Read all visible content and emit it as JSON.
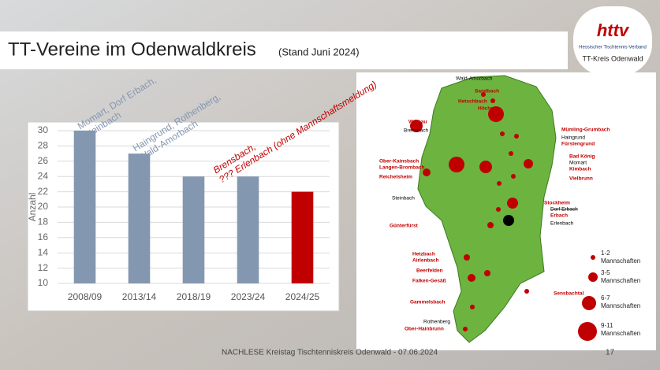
{
  "slide": {
    "title": "TT-Vereine im Odenwaldkreis",
    "subtitle": "(Stand Juni 2024)",
    "footer": "NACHLESE Kreistag Tischtenniskreis Odenwald - 07.06.2024",
    "page": "17",
    "logo": {
      "mark": "httv",
      "org": "Hessischer Tischtennis-Verband",
      "district": "TT-Kreis  Odenwald"
    }
  },
  "chart_data": {
    "type": "bar",
    "categories": [
      "2008/09",
      "2013/14",
      "2018/19",
      "2023/24",
      "2024/25"
    ],
    "values": [
      30,
      27,
      24,
      24,
      22
    ],
    "colors": [
      "#8497b0",
      "#8497b0",
      "#8497b0",
      "#8497b0",
      "#c00000"
    ],
    "ylabel": "Anzahl",
    "ylim": [
      10,
      30
    ],
    "yticks": [
      10,
      12,
      14,
      16,
      18,
      20,
      22,
      24,
      26,
      28,
      30
    ],
    "grid": true,
    "annotations": [
      [
        "Momart, Dorf Erbach,",
        "Steinbach"
      ],
      [
        "Haingrund, Rothenberg,",
        "Wald-Amorbach"
      ],
      [
        "Brensbach,",
        "??? Erlenbach (ohne Mannschaftsmeldung)"
      ]
    ]
  },
  "map": {
    "labels": [
      "Wald-Amorbach",
      "Sandbach",
      "Hetschbach",
      "Höchst",
      "Wersau",
      "Brensbach",
      "Mümling-Grumbach",
      "Haingrund",
      "Fürstengrund",
      "Bad König",
      "Momart",
      "Kimbach",
      "Vielbrunn",
      "Ober-Kainsbach",
      "Langen-Brombach",
      "Reichelsheim",
      "Steinbach",
      "Stockheim",
      "Dorf Erbach",
      "Erbach",
      "Erlenbach",
      "Günterfürst",
      "Hetzbach",
      "Airlenbach",
      "Beerfelden",
      "Falken-Gesäß",
      "Sensbachtal",
      "Gammelsbach",
      "Rothenberg",
      "Ober-Hainbrunn"
    ],
    "legend": [
      [
        "1-2",
        "Mannschaften"
      ],
      [
        "3-5",
        "Mannschaften"
      ],
      [
        "6-7",
        "Mannschaften"
      ],
      [
        "9-11",
        "Mannschaften"
      ]
    ]
  }
}
